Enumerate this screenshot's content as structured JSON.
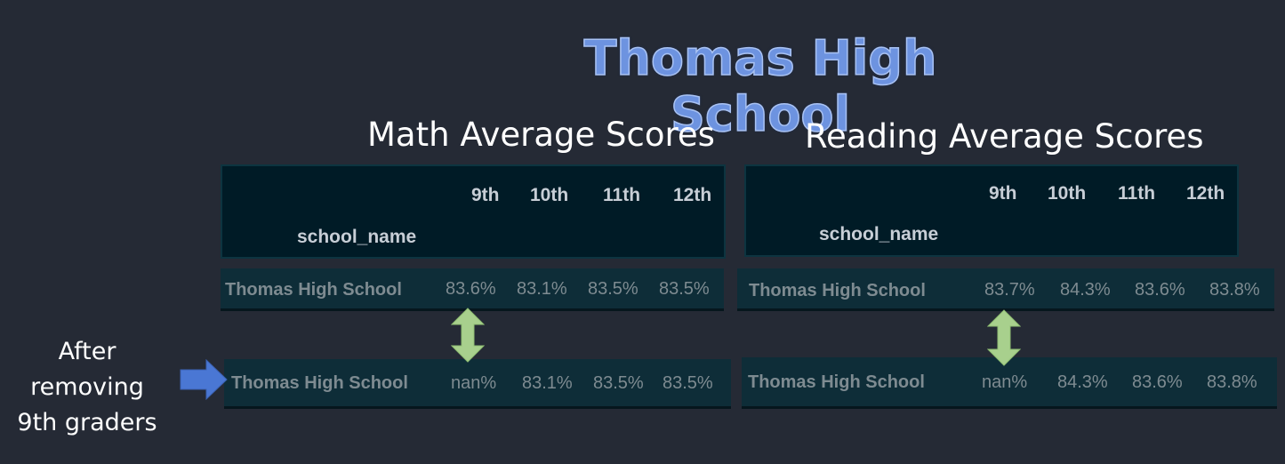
{
  "title": "Thomas High School",
  "annotation": {
    "line1": "After removing",
    "line2": "9th graders"
  },
  "math": {
    "section_title": "Math Average Scores",
    "index_label": "school_name",
    "columns": [
      "9th",
      "10th",
      "11th",
      "12th"
    ],
    "before": {
      "school": "Thomas High School",
      "values": [
        "83.6%",
        "83.1%",
        "83.5%",
        "83.5%"
      ]
    },
    "after": {
      "school": "Thomas High School",
      "values": [
        "nan%",
        "83.1%",
        "83.5%",
        "83.5%"
      ]
    }
  },
  "reading": {
    "section_title": "Reading Average Scores",
    "index_label": "school_name",
    "columns": [
      "9th",
      "10th",
      "11th",
      "12th"
    ],
    "before": {
      "school": "Thomas High School",
      "values": [
        "83.7%",
        "84.3%",
        "83.6%",
        "83.8%"
      ]
    },
    "after": {
      "school": "Thomas High School",
      "values": [
        "nan%",
        "84.3%",
        "83.6%",
        "83.8%"
      ]
    }
  },
  "colors": {
    "background": "#252a35",
    "title": "#6d93e0",
    "arrow_blue": "#4a77d4",
    "arrow_green": "#a8d08d"
  }
}
